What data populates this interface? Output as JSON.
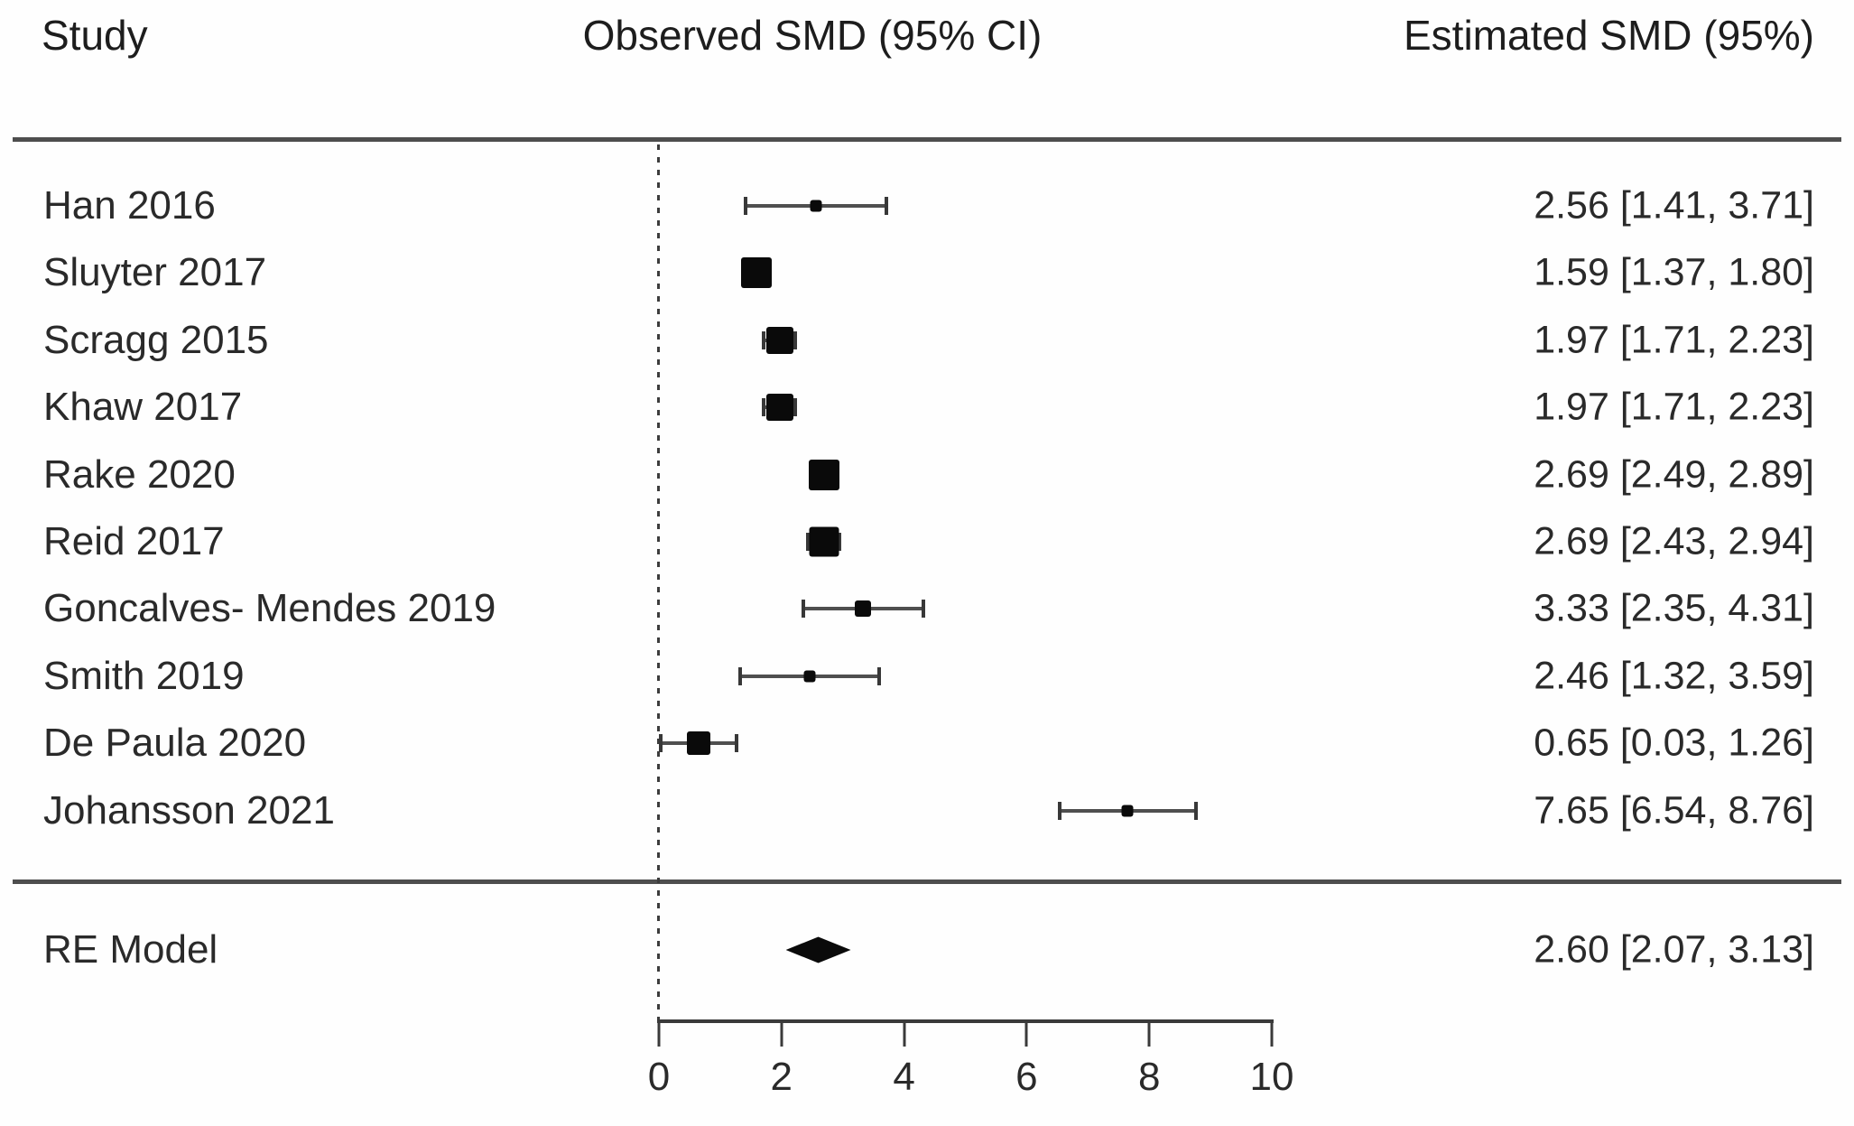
{
  "figure": {
    "columns": [
      {
        "label": "Study"
      },
      {
        "label": "Observed SMD (95% CI)"
      },
      {
        "label": "Estimated SMD (95%)"
      }
    ]
  },
  "chart_data": {
    "type": "forest",
    "effect_measure": "SMD",
    "x_axis": {
      "range": [
        0,
        10
      ],
      "ticks": [
        0,
        2,
        4,
        6,
        8,
        10
      ],
      "reference_line_x": 0,
      "reference_line_style": "dotted"
    },
    "studies": [
      {
        "label": "Han 2016",
        "smd": 2.56,
        "ci_low": 1.41,
        "ci_high": 3.71,
        "estimate_text": "2.56 [1.41, 3.71]",
        "marker_size": 13
      },
      {
        "label": "Sluyter 2017",
        "smd": 1.59,
        "ci_low": 1.37,
        "ci_high": 1.8,
        "estimate_text": "1.59 [1.37, 1.80]",
        "marker_size": 34
      },
      {
        "label": "Scragg 2015",
        "smd": 1.97,
        "ci_low": 1.71,
        "ci_high": 2.23,
        "estimate_text": "1.97 [1.71, 2.23]",
        "marker_size": 30
      },
      {
        "label": "Khaw 2017",
        "smd": 1.97,
        "ci_low": 1.71,
        "ci_high": 2.23,
        "estimate_text": "1.97 [1.71, 2.23]",
        "marker_size": 30
      },
      {
        "label": "Rake 2020",
        "smd": 2.69,
        "ci_low": 2.49,
        "ci_high": 2.89,
        "estimate_text": "2.69 [2.49, 2.89]",
        "marker_size": 34
      },
      {
        "label": "Reid 2017",
        "smd": 2.69,
        "ci_low": 2.43,
        "ci_high": 2.94,
        "estimate_text": "2.69 [2.43, 2.94]",
        "marker_size": 33
      },
      {
        "label": "Goncalves- Mendes 2019",
        "smd": 3.33,
        "ci_low": 2.35,
        "ci_high": 4.31,
        "estimate_text": "3.33 [2.35, 4.31]",
        "marker_size": 18
      },
      {
        "label": "Smith 2019",
        "smd": 2.46,
        "ci_low": 1.32,
        "ci_high": 3.59,
        "estimate_text": "2.46 [1.32, 3.59]",
        "marker_size": 13
      },
      {
        "label": "De Paula 2020",
        "smd": 0.65,
        "ci_low": 0.03,
        "ci_high": 1.26,
        "estimate_text": "0.65 [0.03, 1.26]",
        "marker_size": 26
      },
      {
        "label": "Johansson 2021",
        "smd": 7.65,
        "ci_low": 6.54,
        "ci_high": 8.76,
        "estimate_text": "7.65 [6.54, 8.76]",
        "marker_size": 13
      }
    ],
    "summary": {
      "label": "RE Model",
      "smd": 2.6,
      "ci_low": 2.07,
      "ci_high": 3.13,
      "estimate_text": "2.60 [2.07, 3.13]"
    },
    "colors": {
      "marker": "#0a0a0a",
      "whisker": "#4f4f4f",
      "rule": "#4e4e4e",
      "text": "#2a2a2a"
    }
  }
}
